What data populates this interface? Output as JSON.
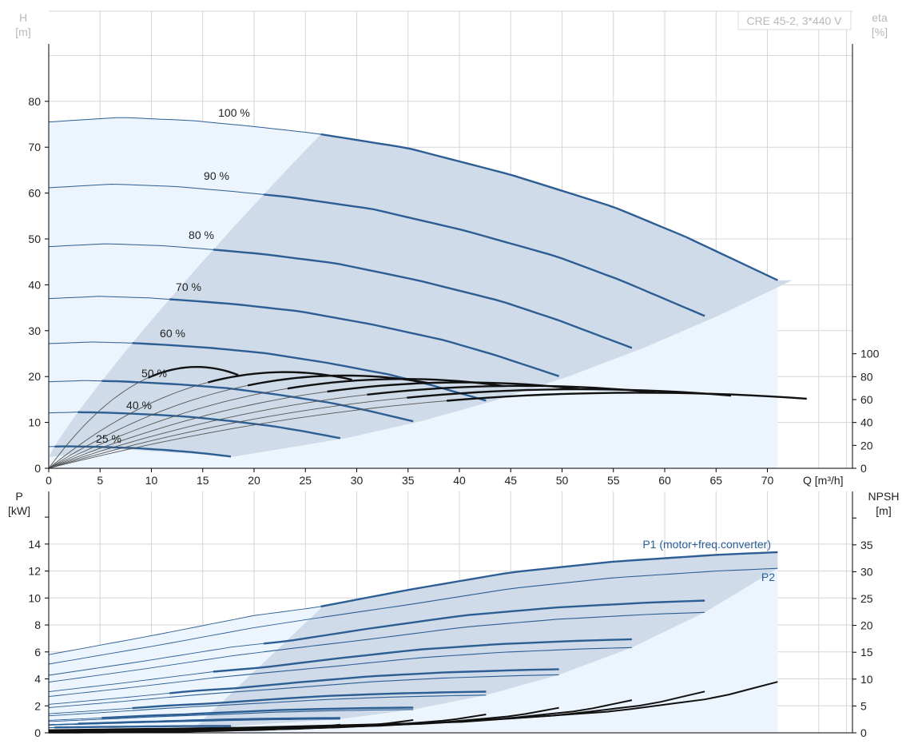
{
  "title": "CRE 45-2, 3*440 V",
  "colors": {
    "hq_curve": "#2c5e94",
    "eff_curve": "#111111",
    "grid": "#d6d6d6",
    "region_light": "#ecf4fd",
    "region_dark": "#cfdbe8",
    "axis": "#000000"
  },
  "chart_data": [
    {
      "type": "line",
      "panel": "head-flow and efficiency",
      "x_unit": "Q [m³/h]",
      "x_ticks": [
        0,
        5,
        10,
        15,
        20,
        25,
        30,
        35,
        40,
        45,
        50,
        55,
        60,
        65,
        70
      ],
      "xlim": [
        0,
        70
      ],
      "y_left": {
        "label": "H",
        "unit": "[m]",
        "ticks": [
          0,
          10,
          20,
          30,
          40,
          50,
          60,
          70,
          80
        ],
        "ylim": [
          0,
          92
        ]
      },
      "y_right": {
        "label": "eta",
        "unit": "[%]",
        "ticks": [
          0,
          20,
          40,
          60,
          80,
          100
        ],
        "ylim": [
          0,
          322
        ]
      },
      "speed_labels": [
        "100 %",
        "90 %",
        "80 %",
        "70 %",
        "60 %",
        "50 %",
        "40 %",
        "25 %"
      ],
      "speeds": [
        1.0,
        0.9,
        0.8,
        0.7,
        0.6,
        0.5,
        0.4,
        0.25
      ],
      "hq_100": {
        "q_max": 71,
        "points": [
          [
            0,
            75.5
          ],
          [
            7,
            76.5
          ],
          [
            14,
            75.8
          ],
          [
            20,
            74.5
          ],
          [
            26,
            73.0
          ],
          [
            35,
            69.8
          ],
          [
            45,
            64.0
          ],
          [
            55,
            57.0
          ],
          [
            62,
            50.5
          ],
          [
            71,
            41.0
          ]
        ]
      },
      "efficiency_peak_percent": 66,
      "efficiency_at_zero_percent": 0
    },
    {
      "type": "line",
      "panel": "power and NPSH",
      "x_unit": "Q [m³/h]",
      "xlim": [
        0,
        70
      ],
      "y_left": {
        "label": "P",
        "unit": "[kW]",
        "ticks": [
          0,
          2,
          4,
          6,
          8,
          10,
          12,
          14
        ],
        "ylim": [
          0,
          16
        ]
      },
      "y_right": {
        "label": "NPSH",
        "unit": "[m]",
        "ticks": [
          0,
          5,
          10,
          15,
          20,
          25,
          30,
          35
        ],
        "ylim": [
          0,
          40
        ]
      },
      "series_labels": [
        "P1 (motor+freq.converter)",
        "P2"
      ],
      "p1_100": {
        "points": [
          [
            0,
            5.8
          ],
          [
            10,
            7.2
          ],
          [
            20,
            8.7
          ],
          [
            26,
            9.3
          ],
          [
            35,
            10.6
          ],
          [
            45,
            11.9
          ],
          [
            55,
            12.7
          ],
          [
            65,
            13.2
          ],
          [
            71,
            13.4
          ]
        ]
      },
      "p2_100": {
        "points": [
          [
            0,
            5.1
          ],
          [
            10,
            6.4
          ],
          [
            20,
            7.8
          ],
          [
            26,
            8.5
          ],
          [
            35,
            9.5
          ],
          [
            45,
            10.7
          ],
          [
            55,
            11.5
          ],
          [
            65,
            12.0
          ],
          [
            71,
            12.2
          ]
        ]
      },
      "npsh_100": {
        "points": [
          [
            0,
            0.5
          ],
          [
            20,
            1.0
          ],
          [
            40,
            2.0
          ],
          [
            55,
            4.0
          ],
          [
            65,
            6.5
          ],
          [
            71,
            9.5
          ]
        ]
      }
    }
  ]
}
